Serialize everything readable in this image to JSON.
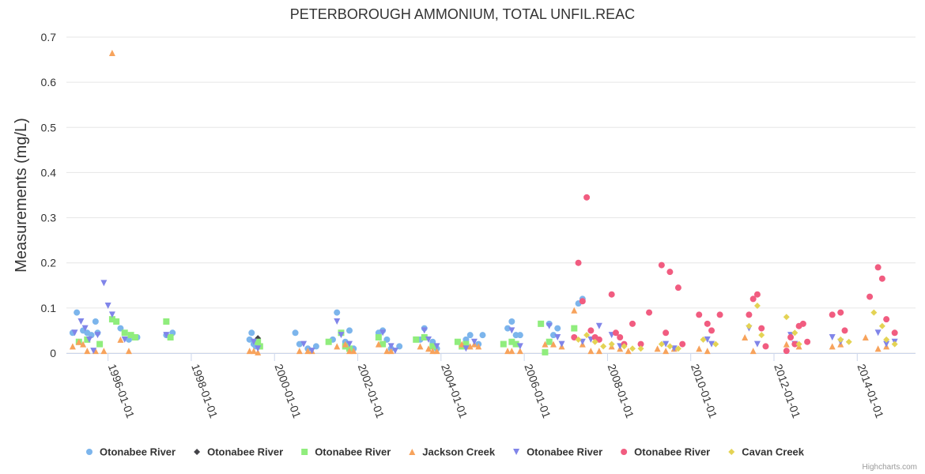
{
  "chart_data": {
    "type": "scatter",
    "title": "PETERBOROUGH AMMONIUM, TOTAL UNFIL.REAC",
    "xlabel": "",
    "ylabel": "Measurements (mg/L)",
    "ylim": [
      0,
      0.7
    ],
    "yticks": [
      "0",
      "0.1",
      "0.2",
      "0.3",
      "0.4",
      "0.5",
      "0.6",
      "0.7"
    ],
    "xlim": [
      1995.0,
      2015.4
    ],
    "xticks": [
      {
        "label": "1996-01-01",
        "year": 1996
      },
      {
        "label": "1998-01-01",
        "year": 1998
      },
      {
        "label": "2000-01-01",
        "year": 2000
      },
      {
        "label": "2002-01-01",
        "year": 2002
      },
      {
        "label": "2004-01-01",
        "year": 2004
      },
      {
        "label": "2006-01-01",
        "year": 2006
      },
      {
        "label": "2008-01-01",
        "year": 2008
      },
      {
        "label": "2010-01-01",
        "year": 2010
      },
      {
        "label": "2012-01-01",
        "year": 2012
      },
      {
        "label": "2014-01-01",
        "year": 2014
      }
    ],
    "series": [
      {
        "name": "Otonabee River",
        "color": "#7cb5ec",
        "symbol": "circle",
        "points": [
          [
            1995.15,
            0.045
          ],
          [
            1995.25,
            0.09
          ],
          [
            1995.4,
            0.05
          ],
          [
            1995.5,
            0.045
          ],
          [
            1995.6,
            0.04
          ],
          [
            1995.7,
            0.07
          ],
          [
            1995.75,
            0.045
          ],
          [
            1996.3,
            0.055
          ],
          [
            1996.5,
            0.03
          ],
          [
            1996.7,
            0.035
          ],
          [
            1997.4,
            0.04
          ],
          [
            1997.55,
            0.045
          ],
          [
            1999.4,
            0.03
          ],
          [
            1999.45,
            0.045
          ],
          [
            1999.5,
            0.02
          ],
          [
            1999.55,
            0.015
          ],
          [
            2000.5,
            0.045
          ],
          [
            2000.6,
            0.02
          ],
          [
            2000.8,
            0.01
          ],
          [
            2001.0,
            0.015
          ],
          [
            2001.4,
            0.03
          ],
          [
            2001.5,
            0.09
          ],
          [
            2001.7,
            0.025
          ],
          [
            2001.8,
            0.05
          ],
          [
            2001.9,
            0.01
          ],
          [
            2002.5,
            0.045
          ],
          [
            2002.6,
            0.05
          ],
          [
            2002.7,
            0.03
          ],
          [
            2002.8,
            0.01
          ],
          [
            2003.0,
            0.015
          ],
          [
            2003.5,
            0.03
          ],
          [
            2003.6,
            0.055
          ],
          [
            2003.8,
            0.025
          ],
          [
            2003.9,
            0.01
          ],
          [
            2004.6,
            0.03
          ],
          [
            2004.7,
            0.04
          ],
          [
            2004.9,
            0.02
          ],
          [
            2005.0,
            0.04
          ],
          [
            2005.6,
            0.055
          ],
          [
            2005.7,
            0.07
          ],
          [
            2005.8,
            0.04
          ],
          [
            2005.9,
            0.04
          ],
          [
            2006.6,
            0.065
          ],
          [
            2006.7,
            0.04
          ],
          [
            2006.8,
            0.055
          ],
          [
            2007.3,
            0.11
          ],
          [
            2007.4,
            0.12
          ]
        ]
      },
      {
        "name": "Otonabee River",
        "color": "#434348",
        "symbol": "diamond",
        "points": [
          [
            1999.6,
            0.033
          ]
        ]
      },
      {
        "name": "Otonabee River",
        "color": "#90ed7d",
        "symbol": "square",
        "points": [
          [
            1995.3,
            0.025
          ],
          [
            1995.5,
            0.03
          ],
          [
            1995.8,
            0.02
          ],
          [
            1996.1,
            0.075
          ],
          [
            1996.2,
            0.07
          ],
          [
            1996.4,
            0.045
          ],
          [
            1996.55,
            0.04
          ],
          [
            1996.65,
            0.035
          ],
          [
            1997.4,
            0.07
          ],
          [
            1997.5,
            0.035
          ],
          [
            1999.6,
            0.025
          ],
          [
            1999.65,
            0.015
          ],
          [
            2001.3,
            0.025
          ],
          [
            2001.6,
            0.045
          ],
          [
            2001.7,
            0.015
          ],
          [
            2001.8,
            0.01
          ],
          [
            2002.5,
            0.035
          ],
          [
            2002.6,
            0.02
          ],
          [
            2003.4,
            0.03
          ],
          [
            2003.6,
            0.035
          ],
          [
            2003.8,
            0.015
          ],
          [
            2004.4,
            0.025
          ],
          [
            2004.5,
            0.015
          ],
          [
            2004.6,
            0.02
          ],
          [
            2005.5,
            0.02
          ],
          [
            2005.7,
            0.025
          ],
          [
            2005.8,
            0.02
          ],
          [
            2006.4,
            0.065
          ],
          [
            2006.5,
            0.002
          ],
          [
            2006.6,
            0.025
          ],
          [
            2007.2,
            0.055
          ]
        ]
      },
      {
        "name": "Jackson Creek",
        "color": "#f7a35c",
        "symbol": "triangle",
        "points": [
          [
            1995.15,
            0.015
          ],
          [
            1995.3,
            0.025
          ],
          [
            1995.4,
            0.02
          ],
          [
            1995.5,
            0.005
          ],
          [
            1995.7,
            0.005
          ],
          [
            1995.9,
            0.005
          ],
          [
            1996.1,
            0.665
          ],
          [
            1996.3,
            0.03
          ],
          [
            1996.5,
            0.005
          ],
          [
            1999.4,
            0.005
          ],
          [
            1999.5,
            0.005
          ],
          [
            1999.6,
            0.002
          ],
          [
            2000.6,
            0.005
          ],
          [
            2000.8,
            0.005
          ],
          [
            2000.9,
            0.005
          ],
          [
            2001.5,
            0.015
          ],
          [
            2001.7,
            0.02
          ],
          [
            2001.8,
            0.005
          ],
          [
            2001.9,
            0.005
          ],
          [
            2002.5,
            0.02
          ],
          [
            2002.7,
            0.005
          ],
          [
            2002.8,
            0.005
          ],
          [
            2003.5,
            0.015
          ],
          [
            2003.7,
            0.01
          ],
          [
            2003.8,
            0.005
          ],
          [
            2003.9,
            0.005
          ],
          [
            2004.5,
            0.02
          ],
          [
            2004.7,
            0.015
          ],
          [
            2004.8,
            0.02
          ],
          [
            2004.9,
            0.015
          ],
          [
            2005.6,
            0.005
          ],
          [
            2005.7,
            0.005
          ],
          [
            2005.9,
            0.005
          ],
          [
            2006.5,
            0.02
          ],
          [
            2006.7,
            0.02
          ],
          [
            2006.9,
            0.015
          ],
          [
            2007.2,
            0.095
          ],
          [
            2007.4,
            0.02
          ],
          [
            2007.6,
            0.005
          ],
          [
            2007.8,
            0.005
          ],
          [
            2008.1,
            0.015
          ],
          [
            2008.3,
            0.01
          ],
          [
            2008.5,
            0.005
          ],
          [
            2009.2,
            0.01
          ],
          [
            2009.4,
            0.005
          ],
          [
            2009.6,
            0.01
          ],
          [
            2010.2,
            0.01
          ],
          [
            2010.4,
            0.005
          ],
          [
            2011.3,
            0.035
          ],
          [
            2011.5,
            0.005
          ],
          [
            2012.3,
            0.02
          ],
          [
            2012.6,
            0.015
          ],
          [
            2013.4,
            0.015
          ],
          [
            2013.6,
            0.02
          ],
          [
            2014.2,
            0.035
          ],
          [
            2014.5,
            0.01
          ],
          [
            2014.7,
            0.015
          ]
        ]
      },
      {
        "name": "Otonabee River",
        "color": "#8085e9",
        "symbol": "triangle-down",
        "points": [
          [
            1995.2,
            0.045
          ],
          [
            1995.35,
            0.07
          ],
          [
            1995.45,
            0.055
          ],
          [
            1995.55,
            0.03
          ],
          [
            1995.65,
            0.005
          ],
          [
            1995.75,
            0.04
          ],
          [
            1995.9,
            0.155
          ],
          [
            1996.0,
            0.105
          ],
          [
            1996.1,
            0.085
          ],
          [
            1996.4,
            0.03
          ],
          [
            1997.4,
            0.04
          ],
          [
            1999.5,
            0.025
          ],
          [
            1999.6,
            0.01
          ],
          [
            2000.7,
            0.02
          ],
          [
            2000.9,
            0.005
          ],
          [
            2001.5,
            0.07
          ],
          [
            2001.6,
            0.04
          ],
          [
            2001.8,
            0.02
          ],
          [
            2002.6,
            0.045
          ],
          [
            2002.8,
            0.015
          ],
          [
            2002.9,
            0.005
          ],
          [
            2003.6,
            0.05
          ],
          [
            2003.7,
            0.03
          ],
          [
            2003.9,
            0.015
          ],
          [
            2004.6,
            0.01
          ],
          [
            2004.8,
            0.025
          ],
          [
            2005.7,
            0.05
          ],
          [
            2005.9,
            0.015
          ],
          [
            2006.6,
            0.06
          ],
          [
            2006.8,
            0.035
          ],
          [
            2006.9,
            0.02
          ],
          [
            2007.4,
            0.025
          ],
          [
            2007.6,
            0.03
          ],
          [
            2007.8,
            0.06
          ],
          [
            2008.1,
            0.04
          ],
          [
            2008.3,
            0.015
          ],
          [
            2009.4,
            0.02
          ],
          [
            2009.6,
            0.01
          ],
          [
            2010.4,
            0.03
          ],
          [
            2010.5,
            0.02
          ],
          [
            2011.4,
            0.055
          ],
          [
            2011.6,
            0.02
          ],
          [
            2012.4,
            0.04
          ],
          [
            2012.5,
            0.02
          ],
          [
            2013.4,
            0.035
          ],
          [
            2013.6,
            0.025
          ],
          [
            2014.5,
            0.045
          ],
          [
            2014.7,
            0.02
          ],
          [
            2014.9,
            0.025
          ]
        ]
      },
      {
        "name": "Otonabee River",
        "color": "#f15c80",
        "symbol": "circle",
        "points": [
          [
            2007.2,
            0.035
          ],
          [
            2007.3,
            0.2
          ],
          [
            2007.4,
            0.115
          ],
          [
            2007.5,
            0.345
          ],
          [
            2007.6,
            0.05
          ],
          [
            2007.7,
            0.035
          ],
          [
            2007.8,
            0.03
          ],
          [
            2008.1,
            0.13
          ],
          [
            2008.2,
            0.045
          ],
          [
            2008.3,
            0.035
          ],
          [
            2008.4,
            0.02
          ],
          [
            2008.6,
            0.065
          ],
          [
            2008.8,
            0.02
          ],
          [
            2009.0,
            0.09
          ],
          [
            2009.3,
            0.195
          ],
          [
            2009.4,
            0.045
          ],
          [
            2009.5,
            0.18
          ],
          [
            2009.7,
            0.145
          ],
          [
            2009.8,
            0.02
          ],
          [
            2010.2,
            0.085
          ],
          [
            2010.4,
            0.065
          ],
          [
            2010.5,
            0.05
          ],
          [
            2010.7,
            0.085
          ],
          [
            2011.4,
            0.085
          ],
          [
            2011.5,
            0.12
          ],
          [
            2011.6,
            0.13
          ],
          [
            2011.7,
            0.055
          ],
          [
            2011.8,
            0.015
          ],
          [
            2012.3,
            0.005
          ],
          [
            2012.4,
            0.035
          ],
          [
            2012.5,
            0.02
          ],
          [
            2012.6,
            0.06
          ],
          [
            2012.7,
            0.065
          ],
          [
            2012.8,
            0.025
          ],
          [
            2013.4,
            0.085
          ],
          [
            2013.6,
            0.09
          ],
          [
            2013.7,
            0.05
          ],
          [
            2014.3,
            0.125
          ],
          [
            2014.5,
            0.19
          ],
          [
            2014.6,
            0.165
          ],
          [
            2014.7,
            0.075
          ],
          [
            2014.9,
            0.045
          ]
        ]
      },
      {
        "name": "Cavan Creek",
        "color": "#e4d354",
        "symbol": "diamond",
        "points": [
          [
            2007.3,
            0.03
          ],
          [
            2007.5,
            0.04
          ],
          [
            2007.7,
            0.025
          ],
          [
            2007.9,
            0.015
          ],
          [
            2008.1,
            0.02
          ],
          [
            2008.4,
            0.015
          ],
          [
            2008.6,
            0.01
          ],
          [
            2008.8,
            0.01
          ],
          [
            2009.3,
            0.02
          ],
          [
            2009.5,
            0.015
          ],
          [
            2009.7,
            0.01
          ],
          [
            2010.3,
            0.03
          ],
          [
            2010.6,
            0.02
          ],
          [
            2011.4,
            0.06
          ],
          [
            2011.6,
            0.105
          ],
          [
            2011.7,
            0.04
          ],
          [
            2012.3,
            0.08
          ],
          [
            2012.5,
            0.045
          ],
          [
            2012.6,
            0.02
          ],
          [
            2013.6,
            0.03
          ],
          [
            2013.8,
            0.025
          ],
          [
            2014.4,
            0.09
          ],
          [
            2014.6,
            0.06
          ],
          [
            2014.7,
            0.03
          ],
          [
            2014.9,
            0.02
          ]
        ]
      }
    ]
  },
  "credits": "Highcharts.com"
}
